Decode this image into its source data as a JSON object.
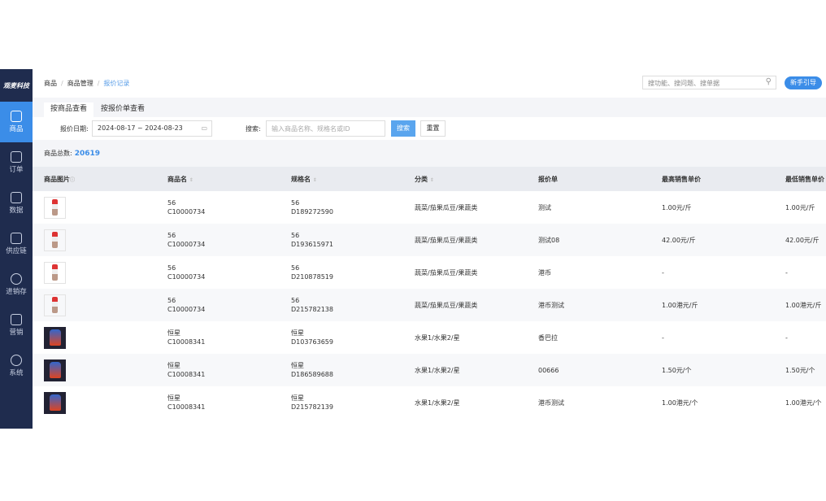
{
  "brand": "观麦科技",
  "sidebar": [
    {
      "label": "商品",
      "icon": "basket-icon",
      "active": true
    },
    {
      "label": "订单",
      "icon": "order-icon"
    },
    {
      "label": "数据",
      "icon": "chart-icon"
    },
    {
      "label": "供应链",
      "icon": "exchange-icon"
    },
    {
      "label": "进销存",
      "icon": "inventory-icon"
    },
    {
      "label": "营销",
      "icon": "tag-icon"
    },
    {
      "label": "系统",
      "icon": "gear-icon"
    }
  ],
  "breadcrumb": [
    "商品",
    "商品管理",
    "报价记录"
  ],
  "global_search": {
    "placeholder": "搜功能、搜问题、搜单据"
  },
  "guide_button": "新手引导",
  "tabs": [
    "按商品查看",
    "按报价单查看"
  ],
  "filter": {
    "date_label": "报价日期:",
    "date_value": "2024-08-17 ~ 2024-08-23",
    "search_label": "搜索:",
    "search_placeholder": "输入商品名称、规格名或ID",
    "search_button": "搜索",
    "reset_button": "重置"
  },
  "total": {
    "label": "商品总数:",
    "value": "20619"
  },
  "columns": [
    "商品图片",
    "商品名",
    "规格名",
    "分类",
    "报价单",
    "最高销售单价",
    "最低销售单价"
  ],
  "rows": [
    {
      "img": "light",
      "name": "56",
      "code": "C10000734",
      "spec": "56",
      "spec_id": "D189272590",
      "cat": "蔬菜/茄果瓜豆/果蔬类",
      "quote": "测试",
      "max": "1.00元/斤",
      "min": "1.00元/斤"
    },
    {
      "img": "light",
      "name": "56",
      "code": "C10000734",
      "spec": "56",
      "spec_id": "D193615971",
      "cat": "蔬菜/茄果瓜豆/果蔬类",
      "quote": "测试08",
      "max": "42.00元/斤",
      "min": "42.00元/斤"
    },
    {
      "img": "light",
      "name": "56",
      "code": "C10000734",
      "spec": "56",
      "spec_id": "D210878519",
      "cat": "蔬菜/茄果瓜豆/果蔬类",
      "quote": "港币",
      "max": "-",
      "min": "-"
    },
    {
      "img": "light",
      "name": "56",
      "code": "C10000734",
      "spec": "56",
      "spec_id": "D215782138",
      "cat": "蔬菜/茄果瓜豆/果蔬类",
      "quote": "港币测试",
      "max": "1.00港元/斤",
      "min": "1.00港元/斤"
    },
    {
      "img": "dark",
      "name": "恒星",
      "code": "C10008341",
      "spec": "恒星",
      "spec_id": "D103763659",
      "cat": "水果1/水果2/星",
      "quote": "香巴拉",
      "max": "-",
      "min": "-"
    },
    {
      "img": "dark",
      "name": "恒星",
      "code": "C10008341",
      "spec": "恒星",
      "spec_id": "D186589688",
      "cat": "水果1/水果2/星",
      "quote": "00666",
      "max": "1.50元/个",
      "min": "1.50元/个"
    },
    {
      "img": "dark",
      "name": "恒星",
      "code": "C10008341",
      "spec": "恒星",
      "spec_id": "D215782139",
      "cat": "水果1/水果2/星",
      "quote": "港币测试",
      "max": "1.00港元/个",
      "min": "1.00港元/个"
    }
  ]
}
